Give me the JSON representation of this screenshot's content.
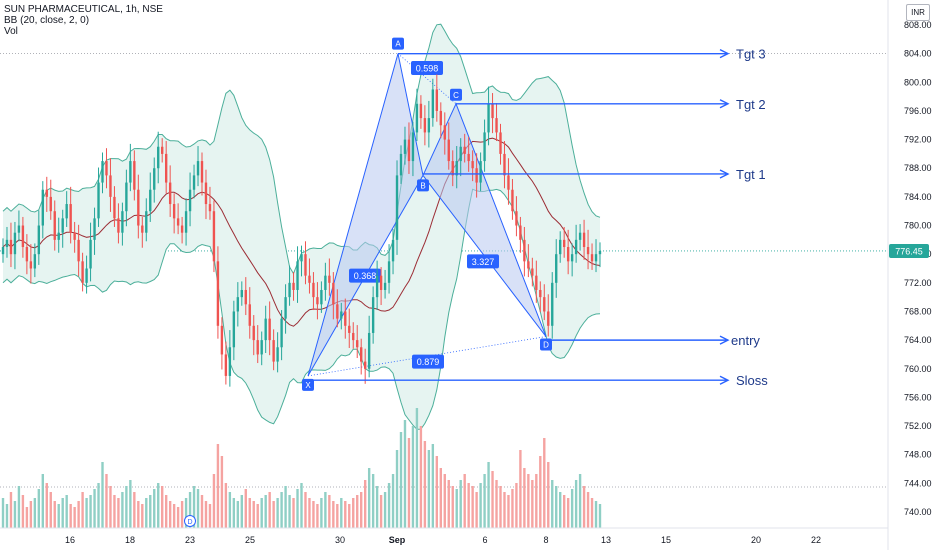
{
  "header": {
    "symbol_line": "SUN PHARMACEUTICAL, 1h, NSE",
    "indicator_bb": "BB (20, close, 2, 0)",
    "indicator_vol": "Vol",
    "currency": "INR"
  },
  "colors": {
    "up": "#26a69a",
    "down": "#ef5350",
    "vol_up": "#8fcfc5",
    "vol_down": "#f5a3a1",
    "bb_fill": "#e6f4f1",
    "bb_line": "#4caf9a",
    "basis": "#9c2d35",
    "pattern_fill": "#b8c8f0",
    "pattern_line": "#2962ff",
    "arrow": "#2962ff",
    "price_tag": "#26a69a"
  },
  "current_price": "776.45",
  "chart_data": {
    "type": "candlestick",
    "y_axis": {
      "ticks": [
        "808.00",
        "804.00",
        "800.00",
        "796.00",
        "792.00",
        "788.00",
        "784.00",
        "780.00",
        "776.00",
        "772.00",
        "768.00",
        "764.00",
        "760.00",
        "756.00",
        "752.00",
        "748.00",
        "744.00",
        "740.00"
      ],
      "range": [
        738,
        810
      ]
    },
    "x_axis": {
      "ticks": [
        "16",
        "18",
        "23",
        "25",
        "30",
        "Sep",
        "6",
        "8",
        "13",
        "15",
        "20",
        "22"
      ]
    },
    "pattern": {
      "points": [
        {
          "label": "X",
          "price": 759.0
        },
        {
          "label": "A",
          "price": 804.0
        },
        {
          "label": "B",
          "price": 787.0
        },
        {
          "label": "C",
          "price": 797.0
        },
        {
          "label": "D",
          "price": 764.5
        }
      ],
      "ratios": [
        "0.368",
        "0.598",
        "3.327",
        "0.879"
      ]
    },
    "levels": [
      {
        "label": "Tgt 3",
        "price": 804.0
      },
      {
        "label": "Tgt 2",
        "price": 797.0
      },
      {
        "label": "Tgt 1",
        "price": 787.2
      },
      {
        "label": "entry",
        "price": 764.0
      },
      {
        "label": "Sloss",
        "price": 758.4
      }
    ],
    "dividend_marker": "D",
    "closes": [
      777,
      778,
      776,
      779,
      780,
      777,
      775,
      774,
      776,
      780,
      785,
      784,
      782,
      778,
      779,
      781,
      783,
      779,
      778,
      775,
      772,
      774,
      778,
      781,
      786,
      789,
      787,
      784,
      781,
      779,
      782,
      786,
      789,
      785,
      780,
      779,
      782,
      785,
      788,
      791,
      790,
      786,
      783,
      781,
      780,
      779,
      782,
      785,
      787,
      789,
      786,
      783,
      782,
      775,
      766,
      762,
      759,
      763,
      768,
      770,
      771,
      769,
      766,
      764,
      762,
      764,
      767,
      764,
      761,
      763,
      767,
      770,
      772,
      771,
      775,
      776,
      773,
      772,
      770,
      769,
      771,
      773,
      772,
      769,
      767,
      768,
      766,
      765,
      764,
      763,
      761,
      760,
      765,
      770,
      773,
      771,
      772,
      775,
      778,
      787,
      790,
      792,
      789,
      793,
      797,
      795,
      793,
      795,
      799,
      796,
      794,
      792,
      789,
      787,
      789,
      791,
      790,
      789,
      788,
      786,
      789,
      793,
      797,
      795,
      793,
      790,
      787,
      785,
      782,
      780,
      778,
      775,
      774,
      773,
      771,
      770,
      768,
      766,
      772,
      776,
      778,
      777,
      775,
      776,
      778,
      779,
      777,
      776,
      775,
      776,
      776.45
    ],
    "volumes": [
      10,
      8,
      12,
      9,
      14,
      11,
      7,
      9,
      10,
      13,
      18,
      15,
      12,
      9,
      8,
      10,
      11,
      8,
      7,
      9,
      12,
      10,
      11,
      13,
      15,
      22,
      18,
      14,
      11,
      10,
      12,
      14,
      16,
      12,
      9,
      8,
      10,
      11,
      13,
      15,
      14,
      11,
      9,
      8,
      7,
      9,
      10,
      12,
      14,
      13,
      11,
      9,
      8,
      18,
      28,
      24,
      15,
      12,
      10,
      9,
      11,
      13,
      10,
      9,
      8,
      10,
      11,
      12,
      9,
      10,
      12,
      14,
      11,
      10,
      13,
      15,
      12,
      10,
      9,
      8,
      10,
      12,
      11,
      9,
      8,
      10,
      9,
      8,
      10,
      11,
      12,
      16,
      20,
      18,
      14,
      11,
      12,
      15,
      18,
      26,
      32,
      36,
      30,
      34,
      40,
      34,
      29,
      26,
      28,
      24,
      20,
      18,
      16,
      14,
      13,
      16,
      18,
      15,
      14,
      12,
      15,
      18,
      22,
      19,
      16,
      14,
      12,
      11,
      13,
      15,
      26,
      20,
      18,
      16,
      18,
      24,
      30,
      22,
      16,
      14,
      12,
      11,
      10,
      13,
      16,
      18,
      14,
      12,
      10,
      9,
      8
    ]
  }
}
